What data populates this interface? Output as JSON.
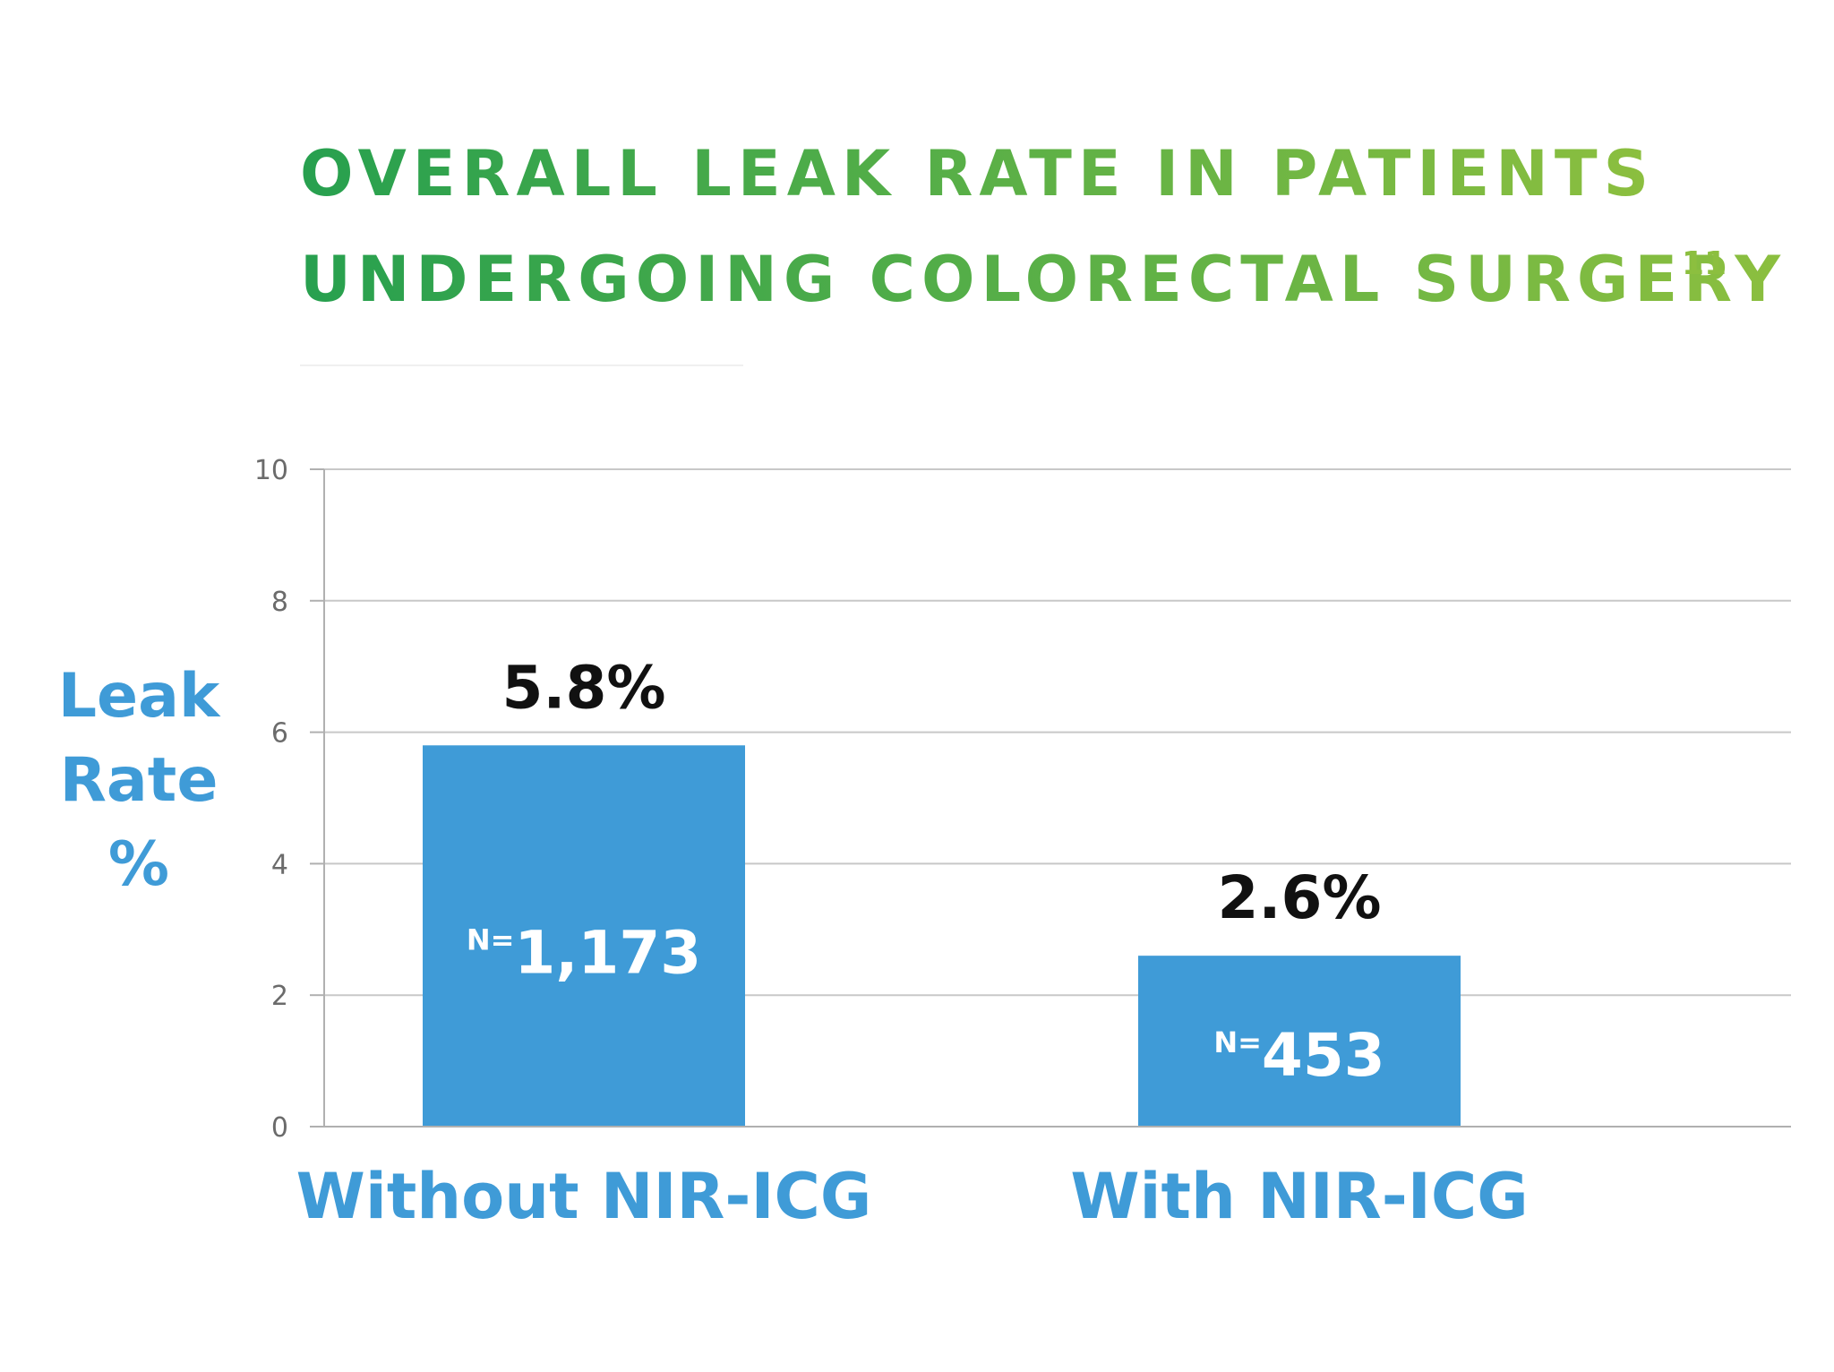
{
  "chart_data": {
    "type": "bar",
    "title": {
      "line1": "OVERALL LEAK RATE IN PATIENTS",
      "line2": "UNDERGOING COLORECTAL SURGERY",
      "superscript": "11"
    },
    "ylabel": [
      "Leak",
      "Rate",
      "%"
    ],
    "categories": [
      "Without NIR-ICG",
      "With NIR-ICG"
    ],
    "values": [
      5.8,
      2.6
    ],
    "value_labels": [
      "5.8%",
      "2.6%"
    ],
    "n_prefix": [
      "N=",
      "N="
    ],
    "n_values": [
      "1,173",
      "453"
    ],
    "ylim": [
      0,
      10
    ],
    "yticks": [
      0,
      2,
      4,
      6,
      8,
      10
    ],
    "grid": true,
    "legend": "none"
  },
  "colors": {
    "bar": "#3f9bd7",
    "title_start": "#27a04f",
    "title_end": "#8cbf3f",
    "category_label": "#3f9bd7",
    "ylabel": "#3f9bd7",
    "gridline": "#c8c8c8",
    "axis": "#b0b0b0",
    "value_label": "#111111"
  }
}
